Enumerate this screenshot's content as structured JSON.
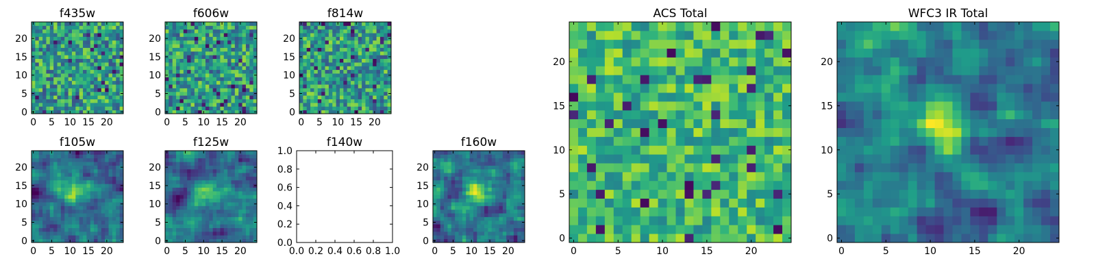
{
  "chart_data": [
    {
      "type": "heatmap",
      "title": "f435w",
      "xticks": [
        "0",
        "5",
        "10",
        "15",
        "20"
      ],
      "yticks": [
        "0",
        "5",
        "10",
        "15",
        "20"
      ],
      "xlim": [
        -0.5,
        24.5
      ],
      "ylim": [
        -0.5,
        24.5
      ],
      "colormap": "viridis",
      "pattern": "noise"
    },
    {
      "type": "heatmap",
      "title": "f606w",
      "xticks": [
        "0",
        "5",
        "10",
        "15",
        "20"
      ],
      "yticks": [
        "0",
        "5",
        "10",
        "15",
        "20"
      ],
      "xlim": [
        -0.5,
        24.5
      ],
      "ylim": [
        -0.5,
        24.5
      ],
      "colormap": "viridis",
      "pattern": "noise"
    },
    {
      "type": "heatmap",
      "title": "f814w",
      "xticks": [
        "0",
        "5",
        "10",
        "15",
        "20"
      ],
      "yticks": [
        "0",
        "5",
        "10",
        "15",
        "20"
      ],
      "xlim": [
        -0.5,
        24.5
      ],
      "ylim": [
        -0.5,
        24.5
      ],
      "colormap": "viridis",
      "pattern": "noise"
    },
    {
      "type": "heatmap",
      "title": "f105w",
      "xticks": [
        "0",
        "5",
        "10",
        "15",
        "20"
      ],
      "yticks": [
        "0",
        "5",
        "10",
        "15",
        "20"
      ],
      "xlim": [
        -0.5,
        24.5
      ],
      "ylim": [
        -0.5,
        24.5
      ],
      "colormap": "viridis",
      "pattern": "smooth-bright"
    },
    {
      "type": "heatmap",
      "title": "f125w",
      "xticks": [
        "0",
        "5",
        "10",
        "15",
        "20"
      ],
      "yticks": [
        "0",
        "5",
        "10",
        "15",
        "20"
      ],
      "xlim": [
        -0.5,
        24.5
      ],
      "ylim": [
        -0.5,
        24.5
      ],
      "colormap": "viridis",
      "pattern": "smooth-bright"
    },
    {
      "type": "empty",
      "title": "f140w",
      "xticks": [
        "0.0",
        "0.2",
        "0.4",
        "0.6",
        "0.8",
        "1.0"
      ],
      "yticks": [
        "0.0",
        "0.2",
        "0.4",
        "0.6",
        "0.8",
        "1.0"
      ],
      "xlim": [
        0,
        1
      ],
      "ylim": [
        0,
        1
      ]
    },
    {
      "type": "heatmap",
      "title": "f160w",
      "xticks": [
        "0",
        "5",
        "10",
        "15",
        "20"
      ],
      "yticks": [
        "0",
        "5",
        "10",
        "15",
        "20"
      ],
      "xlim": [
        -0.5,
        24.5
      ],
      "ylim": [
        -0.5,
        24.5
      ],
      "colormap": "viridis",
      "pattern": "smooth-source"
    },
    {
      "type": "heatmap",
      "title": "ACS Total",
      "xticks": [
        "0",
        "5",
        "10",
        "15",
        "20"
      ],
      "yticks": [
        "0",
        "5",
        "10",
        "15",
        "20"
      ],
      "xlim": [
        -0.5,
        24.5
      ],
      "ylim": [
        -0.5,
        24.5
      ],
      "colormap": "viridis",
      "pattern": "noise-bright"
    },
    {
      "type": "heatmap",
      "title": "WFC3 IR Total",
      "xticks": [
        "0",
        "5",
        "10",
        "15",
        "20"
      ],
      "yticks": [
        "0",
        "5",
        "10",
        "15",
        "20"
      ],
      "xlim": [
        -0.5,
        24.5
      ],
      "ylim": [
        -0.5,
        24.5
      ],
      "colormap": "viridis",
      "pattern": "source"
    }
  ]
}
